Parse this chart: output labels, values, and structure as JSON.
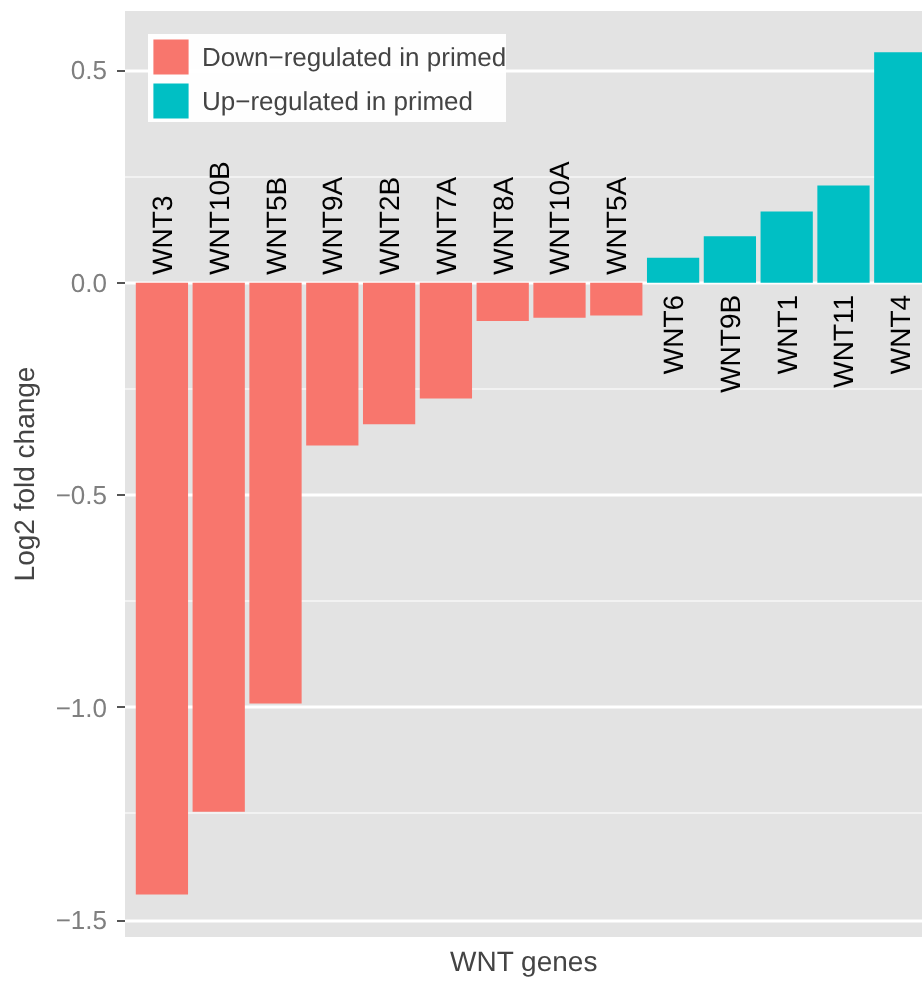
{
  "chart_data": {
    "type": "bar",
    "xlabel": "WNT genes",
    "ylabel": "Log2 fold change",
    "categories": [
      "WNT3",
      "WNT10B",
      "WNT5B",
      "WNT9A",
      "WNT2B",
      "WNT7A",
      "WNT8A",
      "WNT10A",
      "WNT5A",
      "WNT6",
      "WNT9B",
      "WNT1",
      "WNT11",
      "WNT4"
    ],
    "series": [
      {
        "name": "Down−regulated in primed",
        "color": "#f8766d",
        "values": [
          -1.44,
          -1.245,
          -0.99,
          -0.383,
          -0.333,
          -0.272,
          -0.09,
          -0.082,
          -0.077,
          null,
          null,
          null,
          null,
          null
        ]
      },
      {
        "name": "Up−regulated in primed",
        "color": "#00bfc4",
        "values": [
          null,
          null,
          null,
          null,
          null,
          null,
          null,
          null,
          null,
          0.059,
          0.11,
          0.168,
          0.229,
          0.543
        ]
      }
    ],
    "ylim": [
      -1.54,
      0.64
    ],
    "yticks": [
      {
        "value": -1.5,
        "label": "−1.5"
      },
      {
        "value": -1.0,
        "label": "−1.0"
      },
      {
        "value": -0.5,
        "label": "−0.5"
      },
      {
        "value": 0.0,
        "label": "0.0"
      },
      {
        "value": 0.5,
        "label": "0.5"
      }
    ],
    "grid": "y",
    "legend": "top left"
  }
}
